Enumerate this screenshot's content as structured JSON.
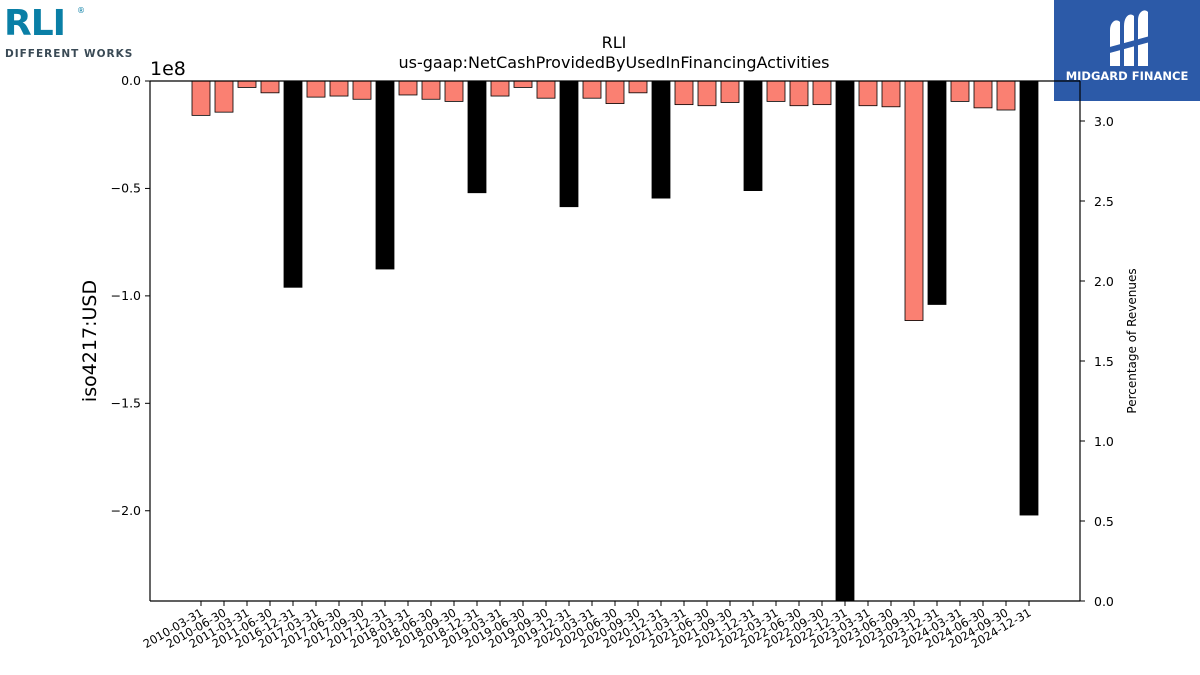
{
  "logos": {
    "left": {
      "wordmark": "RLI",
      "registered": "®",
      "tagline": "DIFFERENT WORKS"
    },
    "right": {
      "name": "MIDGARD FINANCE",
      "background_color": "#2c5aa8"
    }
  },
  "colors": {
    "positive_bar": "#fa8072",
    "negative_bar": "#000000",
    "bar_edge": "#000000"
  },
  "chart_data": {
    "type": "bar",
    "title": "RLI",
    "subtitle": "us-gaap:NetCashProvidedByUsedInFinancingActivities",
    "ylabel": "iso4217:USD",
    "y_offset_label": "1e8",
    "y2label": "Percentage of Revenues",
    "grid": false,
    "ylim": [
      -2.42,
      0.0
    ],
    "y_ticks": [
      0.0,
      -0.5,
      -1.0,
      -1.5,
      -2.0
    ],
    "y_tick_labels": [
      "0.0",
      "−0.5",
      "−1.0",
      "−1.5",
      "−2.0"
    ],
    "y2lim": [
      0.0,
      3.25
    ],
    "y2_ticks": [
      0.0,
      0.5,
      1.0,
      1.5,
      2.0,
      2.5,
      3.0
    ],
    "y2_tick_labels": [
      "0.0",
      "0.5",
      "1.0",
      "1.5",
      "2.0",
      "2.5",
      "3.0"
    ],
    "categories": [
      "2010-03-31",
      "2010-06-30",
      "2011-03-31",
      "2011-06-30",
      "2016-12-31",
      "2017-03-31",
      "2017-06-30",
      "2017-09-30",
      "2017-12-31",
      "2018-03-31",
      "2018-06-30",
      "2018-09-30",
      "2018-12-31",
      "2019-03-31",
      "2019-06-30",
      "2019-09-30",
      "2019-12-31",
      "2020-03-31",
      "2020-06-30",
      "2020-09-30",
      "2020-12-31",
      "2021-03-31",
      "2021-06-30",
      "2021-09-30",
      "2021-12-31",
      "2022-03-31",
      "2022-06-30",
      "2022-09-30",
      "2022-12-31",
      "2023-03-31",
      "2023-06-30",
      "2023-09-30",
      "2023-12-31",
      "2024-03-31",
      "2024-06-30",
      "2024-09-30",
      "2024-12-31"
    ],
    "values": [
      -0.16,
      -0.145,
      -0.03,
      -0.055,
      -0.96,
      -0.075,
      -0.07,
      -0.085,
      -0.875,
      -0.065,
      -0.085,
      -0.095,
      -0.52,
      -0.07,
      -0.03,
      -0.08,
      -0.585,
      -0.08,
      -0.105,
      -0.055,
      -0.545,
      -0.11,
      -0.115,
      -0.1,
      -0.51,
      -0.095,
      -0.115,
      -0.11,
      -2.42,
      -0.115,
      -0.12,
      -1.115,
      -1.04,
      -0.095,
      -0.125,
      -0.135,
      -2.02
    ],
    "bar_kind": [
      "q",
      "q",
      "q",
      "q",
      "fy",
      "q",
      "q",
      "q",
      "fy",
      "q",
      "q",
      "q",
      "fy",
      "q",
      "q",
      "q",
      "fy",
      "q",
      "q",
      "q",
      "fy",
      "q",
      "q",
      "q",
      "fy",
      "q",
      "q",
      "q",
      "fy",
      "q",
      "q",
      "q",
      "fy",
      "q",
      "q",
      "q",
      "fy"
    ]
  }
}
